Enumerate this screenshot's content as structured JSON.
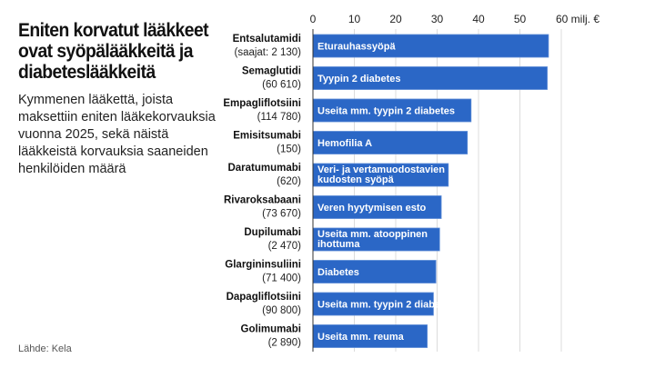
{
  "title": "Eniten korvatut lääkkeet ovat syöpälääkkeitä ja diabeteslääkkeitä",
  "subtitle": "Kymmenen lääkettä, joista maksettiin eniten lääkekorvauksia vuonna 2025, sekä näistä lääkkeistä korvauksia saaneiden henkilöiden määrä",
  "source": "Lähde: Kela",
  "chart_data": {
    "type": "bar",
    "orientation": "horizontal",
    "xlim": [
      0,
      60
    ],
    "ticks": [
      "0",
      "10",
      "20",
      "30",
      "40",
      "50",
      "60 milj. €"
    ],
    "tick_values": [
      0,
      10,
      20,
      30,
      40,
      50,
      60
    ],
    "grid": true,
    "bar_color": "#2b67c6",
    "categories": [
      "Entsalutamidi",
      "Semaglutidi",
      "Empagliflotsiini",
      "Emisitsumabi",
      "Daratumumabi",
      "Rivaroksabaani",
      "Dupilumabi",
      "Glargininsuliini",
      "Dapagliflotsiini",
      "Golimumabi"
    ],
    "counts": [
      "(saajat: 2 130)",
      "(60 610)",
      "(114 780)",
      "(150)",
      "(620)",
      "(73 670)",
      "(2 470)",
      "(71 400)",
      "(90 800)",
      "(2 890)"
    ],
    "bar_labels": [
      [
        "Eturauhassyöpä"
      ],
      [
        "Tyypin 2 diabetes"
      ],
      [
        "Useita mm. tyypin 2 diabetes"
      ],
      [
        "Hemofilia A"
      ],
      [
        "Veri- ja vertamuodostavien",
        "kudosten syöpä"
      ],
      [
        "Veren hyytymisen esto"
      ],
      [
        "Useita mm. atooppinen",
        "ihottuma"
      ],
      [
        "Diabetes"
      ],
      [
        "Useita mm. tyypin 2 diabetes"
      ],
      [
        "Useita mm. reuma"
      ]
    ],
    "values": [
      56.9,
      56.6,
      38.2,
      37.3,
      32.7,
      31.0,
      30.6,
      29.7,
      29.1,
      27.6
    ]
  }
}
